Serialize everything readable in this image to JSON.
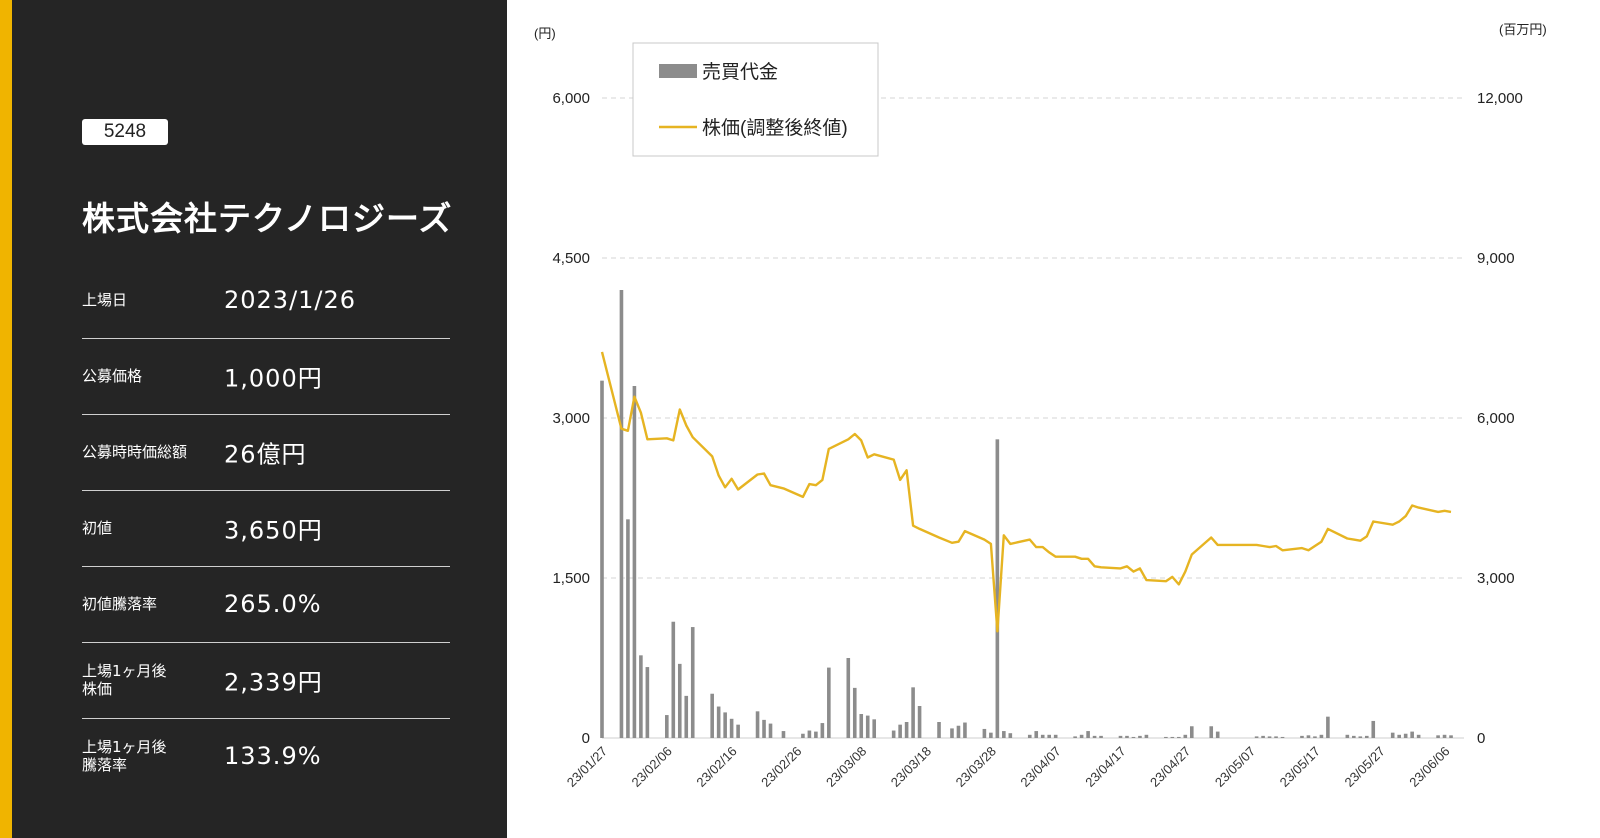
{
  "colors": {
    "accent": "#f0b400",
    "panel": "#252525",
    "line": "#e6b422",
    "bar": "#8c8c8c",
    "grid": "#d6d6d6"
  },
  "ticker": "5248",
  "company": "株式会社テクノロジーズ",
  "rows": [
    {
      "label": "上場日",
      "value": "2023/1/26"
    },
    {
      "label": "公募価格",
      "value": "1,000円"
    },
    {
      "label": "公募時時価総額",
      "value": "26億円"
    },
    {
      "label": "初値",
      "value": "3,650円"
    },
    {
      "label": "初値騰落率",
      "value": "265.0%"
    },
    {
      "label": "上場1ヶ月後\n株価",
      "value": "2,339円"
    },
    {
      "label": "上場1ヶ月後\n騰落率",
      "value": "133.9%"
    }
  ],
  "chart_data": {
    "type": "bar+line",
    "left_axis": {
      "unit": "(円)",
      "ylim": [
        0,
        6000
      ],
      "ticks": [
        "0",
        "1,500",
        "3,000",
        "4,500",
        "6,000"
      ]
    },
    "right_axis": {
      "unit": "(百万円)",
      "ylim": [
        0,
        12000
      ],
      "ticks": [
        "0",
        "3,000",
        "6,000",
        "9,000",
        "12,000"
      ]
    },
    "x_tick_labels": [
      "23/01/27",
      "23/02/06",
      "23/02/16",
      "23/02/26",
      "23/03/08",
      "23/03/18",
      "23/03/28",
      "23/04/07",
      "23/04/17",
      "23/04/27",
      "23/05/07",
      "23/05/17",
      "23/05/27",
      "23/06/06"
    ],
    "x_start": "2023-01-27",
    "x_end": "2023-06-09",
    "grid": true,
    "legend": "top-left",
    "series": [
      {
        "name": "売買代金",
        "type": "bar",
        "axis": "right",
        "points": [
          [
            "2023-01-27",
            6700
          ],
          [
            "2023-01-30",
            8400
          ],
          [
            "2023-01-31",
            4100
          ],
          [
            "2023-02-01",
            6600
          ],
          [
            "2023-02-02",
            1550
          ],
          [
            "2023-02-03",
            1330
          ],
          [
            "2023-02-06",
            430
          ],
          [
            "2023-02-07",
            2180
          ],
          [
            "2023-02-08",
            1390
          ],
          [
            "2023-02-09",
            790
          ],
          [
            "2023-02-10",
            2080
          ],
          [
            "2023-02-13",
            830
          ],
          [
            "2023-02-14",
            590
          ],
          [
            "2023-02-15",
            480
          ],
          [
            "2023-02-16",
            360
          ],
          [
            "2023-02-17",
            250
          ],
          [
            "2023-02-20",
            500
          ],
          [
            "2023-02-21",
            340
          ],
          [
            "2023-02-22",
            270
          ],
          [
            "2023-02-24",
            130
          ],
          [
            "2023-02-27",
            80
          ],
          [
            "2023-02-28",
            140
          ],
          [
            "2023-03-01",
            120
          ],
          [
            "2023-03-02",
            280
          ],
          [
            "2023-03-03",
            1320
          ],
          [
            "2023-03-06",
            1500
          ],
          [
            "2023-03-07",
            940
          ],
          [
            "2023-03-08",
            450
          ],
          [
            "2023-03-09",
            420
          ],
          [
            "2023-03-10",
            350
          ],
          [
            "2023-03-13",
            140
          ],
          [
            "2023-03-14",
            250
          ],
          [
            "2023-03-15",
            300
          ],
          [
            "2023-03-16",
            950
          ],
          [
            "2023-03-17",
            600
          ],
          [
            "2023-03-20",
            300
          ],
          [
            "2023-03-22",
            180
          ],
          [
            "2023-03-23",
            230
          ],
          [
            "2023-03-24",
            290
          ],
          [
            "2023-03-27",
            170
          ],
          [
            "2023-03-28",
            100
          ],
          [
            "2023-03-29",
            5600
          ],
          [
            "2023-03-30",
            130
          ],
          [
            "2023-03-31",
            90
          ],
          [
            "2023-04-03",
            60
          ],
          [
            "2023-04-04",
            130
          ],
          [
            "2023-04-05",
            60
          ],
          [
            "2023-04-06",
            60
          ],
          [
            "2023-04-07",
            60
          ],
          [
            "2023-04-10",
            30
          ],
          [
            "2023-04-11",
            60
          ],
          [
            "2023-04-12",
            130
          ],
          [
            "2023-04-13",
            40
          ],
          [
            "2023-04-14",
            40
          ],
          [
            "2023-04-17",
            40
          ],
          [
            "2023-04-18",
            40
          ],
          [
            "2023-04-19",
            20
          ],
          [
            "2023-04-20",
            40
          ],
          [
            "2023-04-21",
            60
          ],
          [
            "2023-04-24",
            20
          ],
          [
            "2023-04-25",
            20
          ],
          [
            "2023-04-26",
            20
          ],
          [
            "2023-04-27",
            60
          ],
          [
            "2023-04-28",
            220
          ],
          [
            "2023-05-01",
            220
          ],
          [
            "2023-05-02",
            120
          ],
          [
            "2023-05-08",
            30
          ],
          [
            "2023-05-09",
            40
          ],
          [
            "2023-05-10",
            30
          ],
          [
            "2023-05-11",
            30
          ],
          [
            "2023-05-12",
            20
          ],
          [
            "2023-05-15",
            40
          ],
          [
            "2023-05-16",
            50
          ],
          [
            "2023-05-17",
            30
          ],
          [
            "2023-05-18",
            60
          ],
          [
            "2023-05-19",
            400
          ],
          [
            "2023-05-22",
            60
          ],
          [
            "2023-05-23",
            40
          ],
          [
            "2023-05-24",
            30
          ],
          [
            "2023-05-25",
            40
          ],
          [
            "2023-05-26",
            320
          ],
          [
            "2023-05-29",
            100
          ],
          [
            "2023-05-30",
            60
          ],
          [
            "2023-05-31",
            80
          ],
          [
            "2023-06-01",
            120
          ],
          [
            "2023-06-02",
            60
          ],
          [
            "2023-06-05",
            50
          ],
          [
            "2023-06-06",
            60
          ],
          [
            "2023-06-07",
            50
          ]
        ]
      },
      {
        "name": "株価(調整後終値)",
        "type": "line",
        "axis": "left",
        "points": [
          [
            "2023-01-27",
            3620
          ],
          [
            "2023-01-30",
            2900
          ],
          [
            "2023-01-31",
            2880
          ],
          [
            "2023-02-01",
            3200
          ],
          [
            "2023-02-02",
            3050
          ],
          [
            "2023-02-03",
            2800
          ],
          [
            "2023-02-06",
            2810
          ],
          [
            "2023-02-07",
            2790
          ],
          [
            "2023-02-08",
            3080
          ],
          [
            "2023-02-09",
            2930
          ],
          [
            "2023-02-10",
            2820
          ],
          [
            "2023-02-13",
            2640
          ],
          [
            "2023-02-14",
            2460
          ],
          [
            "2023-02-15",
            2350
          ],
          [
            "2023-02-16",
            2430
          ],
          [
            "2023-02-17",
            2330
          ],
          [
            "2023-02-20",
            2470
          ],
          [
            "2023-02-21",
            2480
          ],
          [
            "2023-02-22",
            2370
          ],
          [
            "2023-02-24",
            2340
          ],
          [
            "2023-02-27",
            2260
          ],
          [
            "2023-02-28",
            2380
          ],
          [
            "2023-03-01",
            2370
          ],
          [
            "2023-03-02",
            2420
          ],
          [
            "2023-03-03",
            2710
          ],
          [
            "2023-03-06",
            2800
          ],
          [
            "2023-03-07",
            2850
          ],
          [
            "2023-03-08",
            2790
          ],
          [
            "2023-03-09",
            2630
          ],
          [
            "2023-03-10",
            2660
          ],
          [
            "2023-03-13",
            2610
          ],
          [
            "2023-03-14",
            2420
          ],
          [
            "2023-03-15",
            2510
          ],
          [
            "2023-03-16",
            1990
          ],
          [
            "2023-03-17",
            1960
          ],
          [
            "2023-03-20",
            1880
          ],
          [
            "2023-03-22",
            1830
          ],
          [
            "2023-03-23",
            1840
          ],
          [
            "2023-03-24",
            1940
          ],
          [
            "2023-03-27",
            1860
          ],
          [
            "2023-03-28",
            1820
          ],
          [
            "2023-03-29",
            1000
          ],
          [
            "2023-03-30",
            1900
          ],
          [
            "2023-03-31",
            1820
          ],
          [
            "2023-04-03",
            1860
          ],
          [
            "2023-04-04",
            1790
          ],
          [
            "2023-04-05",
            1790
          ],
          [
            "2023-04-06",
            1740
          ],
          [
            "2023-04-07",
            1700
          ],
          [
            "2023-04-10",
            1700
          ],
          [
            "2023-04-11",
            1680
          ],
          [
            "2023-04-12",
            1680
          ],
          [
            "2023-04-13",
            1610
          ],
          [
            "2023-04-14",
            1600
          ],
          [
            "2023-04-17",
            1590
          ],
          [
            "2023-04-18",
            1610
          ],
          [
            "2023-04-19",
            1560
          ],
          [
            "2023-04-20",
            1590
          ],
          [
            "2023-04-21",
            1480
          ],
          [
            "2023-04-24",
            1470
          ],
          [
            "2023-04-25",
            1510
          ],
          [
            "2023-04-26",
            1440
          ],
          [
            "2023-04-27",
            1560
          ],
          [
            "2023-04-28",
            1720
          ],
          [
            "2023-05-01",
            1880
          ],
          [
            "2023-05-02",
            1810
          ],
          [
            "2023-05-08",
            1810
          ],
          [
            "2023-05-09",
            1800
          ],
          [
            "2023-05-10",
            1790
          ],
          [
            "2023-05-11",
            1800
          ],
          [
            "2023-05-12",
            1760
          ],
          [
            "2023-05-15",
            1780
          ],
          [
            "2023-05-16",
            1760
          ],
          [
            "2023-05-17",
            1800
          ],
          [
            "2023-05-18",
            1840
          ],
          [
            "2023-05-19",
            1960
          ],
          [
            "2023-05-22",
            1870
          ],
          [
            "2023-05-23",
            1860
          ],
          [
            "2023-05-24",
            1850
          ],
          [
            "2023-05-25",
            1890
          ],
          [
            "2023-05-26",
            2030
          ],
          [
            "2023-05-29",
            2000
          ],
          [
            "2023-05-30",
            2030
          ],
          [
            "2023-05-31",
            2080
          ],
          [
            "2023-06-01",
            2180
          ],
          [
            "2023-06-02",
            2160
          ],
          [
            "2023-06-05",
            2120
          ],
          [
            "2023-06-06",
            2130
          ],
          [
            "2023-06-07",
            2120
          ]
        ]
      }
    ]
  }
}
